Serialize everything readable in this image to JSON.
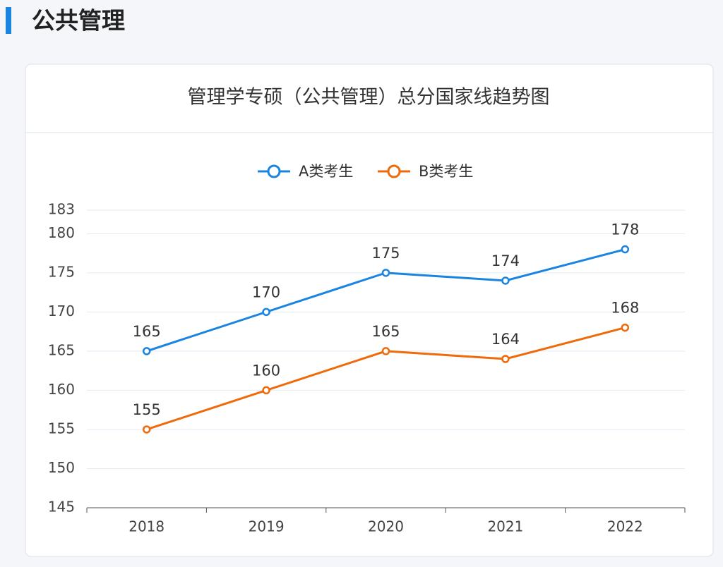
{
  "header": {
    "title": "公共管理"
  },
  "chart_data": {
    "type": "line",
    "title": "管理学专硕（公共管理）总分国家线趋势图",
    "categories": [
      "2018",
      "2019",
      "2020",
      "2021",
      "2022"
    ],
    "series": [
      {
        "name": "A类考生",
        "color": "#1a84e0",
        "values": [
          165,
          170,
          175,
          174,
          178
        ]
      },
      {
        "name": "B类考生",
        "color": "#ee6a0a",
        "values": [
          155,
          160,
          165,
          164,
          168
        ]
      }
    ],
    "ylim": [
      145,
      183
    ],
    "yticks": [
      145,
      150,
      155,
      160,
      165,
      170,
      175,
      180,
      183
    ],
    "grid": true,
    "legend": "top"
  }
}
